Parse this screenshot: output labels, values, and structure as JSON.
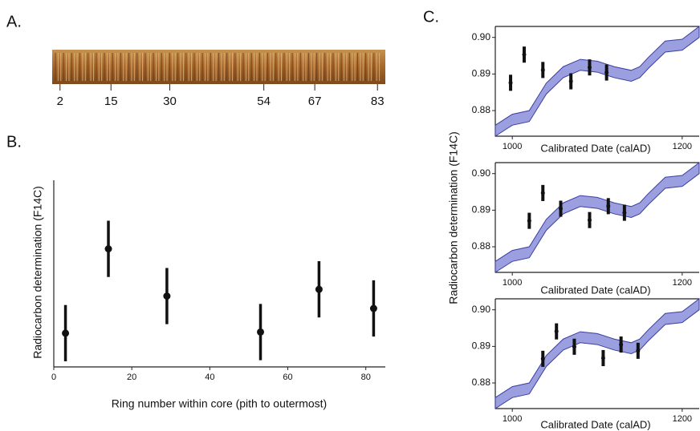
{
  "chart_data": [
    {
      "type": "strip",
      "title": "A.",
      "xlim": [
        0,
        85
      ],
      "xticks": [
        2,
        15,
        30,
        54,
        67,
        83
      ],
      "color": "#9a5a22"
    },
    {
      "type": "scatter",
      "title": "B.",
      "xlabel": "Ring number within core (pith to outermost)",
      "ylabel": "Radiocarbon determination (F14C)",
      "x": [
        3,
        14,
        29,
        53,
        68,
        82
      ],
      "values": [
        0.8875,
        0.895,
        0.8908,
        0.8876,
        0.8914,
        0.8897
      ],
      "errors": [
        0.0025,
        0.0025,
        0.0025,
        0.0025,
        0.0025,
        0.0025
      ],
      "xlim": [
        0,
        85
      ],
      "xticks": [
        0,
        20,
        40,
        60,
        80
      ],
      "ylim": [
        0.8845,
        0.9011
      ],
      "color": "#111111"
    },
    {
      "type": "calibration",
      "title": "C.",
      "xlabel": "Calibrated Date (calAD)",
      "ylabel": "Radiocarbon determination (F14C)",
      "curve": {
        "x": [
          980,
          1000,
          1020,
          1040,
          1060,
          1080,
          1100,
          1120,
          1140,
          1150,
          1160,
          1180,
          1200,
          1220
        ],
        "upper": [
          0.876,
          0.879,
          0.88,
          0.8875,
          0.892,
          0.894,
          0.8935,
          0.892,
          0.891,
          0.892,
          0.8945,
          0.899,
          0.8995,
          0.903
        ],
        "lower": [
          0.873,
          0.876,
          0.877,
          0.8845,
          0.889,
          0.891,
          0.8905,
          0.889,
          0.888,
          0.889,
          0.8915,
          0.896,
          0.8965,
          0.9
        ],
        "color": "#9b9fe0",
        "edge": "#3a3fa0"
      },
      "x": [
        998,
        1014,
        1036,
        1069,
        1091,
        1111
      ],
      "values": [
        0.8876,
        0.8953,
        0.8911,
        0.888,
        0.8918,
        0.8904
      ],
      "errors": [
        0.0022,
        0.0022,
        0.0022,
        0.0022,
        0.0022,
        0.0022
      ],
      "xlim": [
        980,
        1220
      ],
      "xticks": [
        1000,
        1200
      ],
      "ylim": [
        0.873,
        0.903
      ],
      "yticks": [
        0.88,
        0.89,
        {
          "value": 0.9,
          "label": "0.90"
        }
      ],
      "color": "#111111"
    },
    {
      "type": "calibration",
      "xlabel": "Calibrated Date (calAD)",
      "curve": {
        "x": [
          980,
          1000,
          1020,
          1040,
          1060,
          1080,
          1100,
          1120,
          1140,
          1150,
          1160,
          1180,
          1200,
          1220
        ],
        "upper": [
          0.876,
          0.879,
          0.88,
          0.8875,
          0.892,
          0.894,
          0.8935,
          0.892,
          0.891,
          0.892,
          0.8945,
          0.899,
          0.8995,
          0.903
        ],
        "lower": [
          0.873,
          0.876,
          0.877,
          0.8845,
          0.889,
          0.891,
          0.8905,
          0.889,
          0.888,
          0.889,
          0.8915,
          0.896,
          0.8965,
          0.9
        ],
        "color": "#9b9fe0",
        "edge": "#3a3fa0"
      },
      "x": [
        1020,
        1036,
        1057,
        1091,
        1113,
        1132
      ],
      "values": [
        0.8871,
        0.8947,
        0.8904,
        0.8873,
        0.8911,
        0.8893
      ],
      "errors": [
        0.0022,
        0.0022,
        0.0022,
        0.0022,
        0.0022,
        0.0022
      ],
      "xlim": [
        980,
        1220
      ],
      "xticks": [
        1000,
        1200
      ],
      "ylim": [
        0.873,
        0.903
      ],
      "yticks": [
        0.88,
        0.89,
        {
          "value": 0.9,
          "label": "0.90"
        }
      ],
      "color": "#111111"
    },
    {
      "type": "calibration",
      "xlabel": "Calibrated Date (calAD)",
      "curve": {
        "x": [
          980,
          1000,
          1020,
          1040,
          1060,
          1080,
          1100,
          1120,
          1140,
          1150,
          1160,
          1180,
          1200,
          1220
        ],
        "upper": [
          0.876,
          0.879,
          0.88,
          0.8875,
          0.892,
          0.894,
          0.8935,
          0.892,
          0.891,
          0.892,
          0.8945,
          0.899,
          0.8995,
          0.903
        ],
        "lower": [
          0.873,
          0.876,
          0.877,
          0.8845,
          0.889,
          0.891,
          0.8905,
          0.889,
          0.888,
          0.889,
          0.8915,
          0.896,
          0.8965,
          0.9
        ],
        "color": "#9b9fe0",
        "edge": "#3a3fa0"
      },
      "x": [
        1036,
        1052,
        1073,
        1107,
        1128,
        1148
      ],
      "values": [
        0.8866,
        0.8941,
        0.8899,
        0.8868,
        0.8905,
        0.8888
      ],
      "errors": [
        0.0022,
        0.0022,
        0.0022,
        0.0022,
        0.0022,
        0.0022
      ],
      "xlim": [
        980,
        1220
      ],
      "xticks": [
        1000,
        1200
      ],
      "ylim": [
        0.873,
        0.903
      ],
      "yticks": [
        0.88,
        0.89,
        {
          "value": 0.9,
          "label": "0.90"
        }
      ],
      "color": "#111111"
    }
  ]
}
